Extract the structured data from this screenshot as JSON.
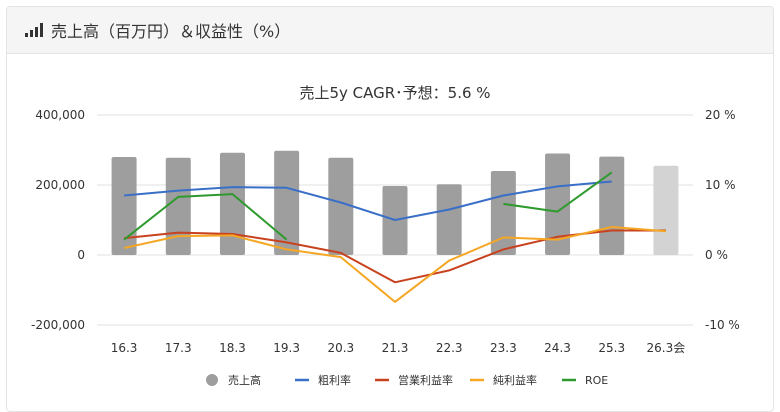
{
  "header": {
    "title": "売上高（百万円）＆収益性（%）",
    "icon": "signal-bars-icon"
  },
  "chart_data": {
    "type": "bar",
    "title": "売上5y CAGR･予想：5.6 %",
    "categories": [
      "16.3",
      "17.3",
      "18.3",
      "19.3",
      "20.3",
      "21.3",
      "22.3",
      "23.3",
      "24.3",
      "25.3",
      "26.3会"
    ],
    "y_left": {
      "ticks": [
        "400,000",
        "200,000",
        "0",
        "-200,000"
      ],
      "range": [
        -200000,
        400000
      ]
    },
    "y_right": {
      "ticks": [
        "20 %",
        "10 %",
        "0 %",
        "-10 %"
      ],
      "range": [
        -10,
        20
      ]
    },
    "grid": true,
    "legend_position": "bottom",
    "series": [
      {
        "name": "売上高",
        "type": "bar",
        "axis": "left",
        "color": "#9e9e9e",
        "forecast_color": "#d3d3d3",
        "values": [
          280000,
          278000,
          292000,
          298000,
          278000,
          197000,
          202000,
          240000,
          290000,
          281000,
          255000
        ]
      },
      {
        "name": "粗利率",
        "type": "line",
        "axis": "right",
        "color": "#3a6fc8",
        "values": [
          8.5,
          9.2,
          9.7,
          9.6,
          7.5,
          5.0,
          6.5,
          8.5,
          9.8,
          10.5,
          null
        ]
      },
      {
        "name": "営業利益率",
        "type": "line",
        "axis": "right",
        "color": "#c8421f",
        "values": [
          2.4,
          3.2,
          3.0,
          1.8,
          0.3,
          -3.9,
          -2.2,
          0.8,
          2.6,
          3.5,
          3.5
        ]
      },
      {
        "name": "純利益率",
        "type": "line",
        "axis": "right",
        "color": "#f5a623",
        "values": [
          1.0,
          2.7,
          2.8,
          0.8,
          -0.3,
          -6.7,
          -0.8,
          2.5,
          2.2,
          4.0,
          3.4
        ]
      },
      {
        "name": "ROE",
        "type": "line",
        "axis": "right",
        "color": "#2e9a2e",
        "values": [
          2.2,
          8.3,
          8.7,
          2.2,
          null,
          null,
          null,
          7.3,
          6.2,
          11.8,
          null
        ]
      }
    ]
  }
}
